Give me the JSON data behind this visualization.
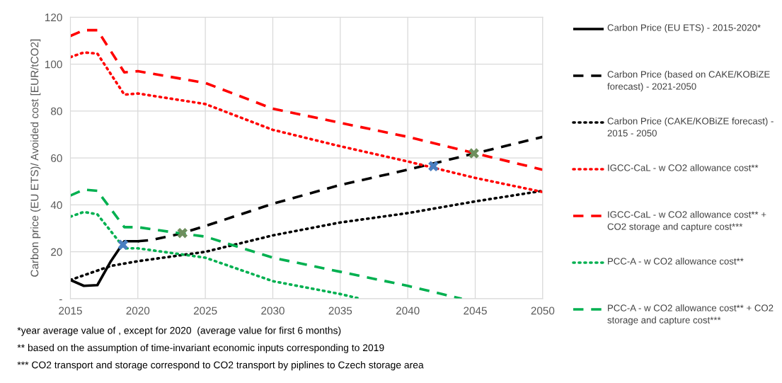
{
  "chart_data": {
    "type": "line",
    "ylabel": "Carbon price (EU ETS)/ Avoided cost [EUR/tCO2]",
    "xlim": [
      2015,
      2050
    ],
    "xticks": [
      2015,
      2020,
      2025,
      2030,
      2035,
      2040,
      2045,
      2050
    ],
    "ylim": [
      0,
      120
    ],
    "yticks": [
      {
        "value": 0,
        "label": "-"
      },
      20,
      40,
      60,
      80,
      100,
      120
    ],
    "grid": true,
    "legend": "right",
    "series": [
      {
        "name": "Carbon Price (EU ETS) - 2015-2020*",
        "color": "#000000",
        "line_style": "solid",
        "x": [
          2015,
          2016,
          2017,
          2018,
          2019,
          2020
        ],
        "values": [
          8,
          5.5,
          5.8,
          16,
          24.5,
          24.5
        ]
      },
      {
        "name": "Carbon Price (based on CAKE/KOBiZE forecast) - 2021-2050",
        "color": "#000000",
        "line_style": "dashed",
        "x": [
          2020,
          2021,
          2023,
          2025,
          2030,
          2035,
          2040,
          2045,
          2050
        ],
        "values": [
          24.5,
          25,
          27.5,
          31,
          40.5,
          48.5,
          55,
          62,
          69
        ]
      },
      {
        "name": "Carbon Price (CAKE/KOBiZE forecast) - 2015 - 2050",
        "color": "#000000",
        "line_style": "dotted",
        "x": [
          2015,
          2017,
          2018,
          2020,
          2025,
          2030,
          2035,
          2040,
          2045,
          2050
        ],
        "values": [
          8,
          12,
          14,
          16,
          20,
          27,
          32.5,
          36.5,
          41.5,
          46
        ]
      },
      {
        "name": "IGCC-CaL - w CO2 allowance cost**",
        "color": "#ff0000",
        "line_style": "dotted",
        "x": [
          2015,
          2016,
          2017,
          2019,
          2020,
          2025,
          2030,
          2035,
          2040,
          2045,
          2050
        ],
        "values": [
          103,
          105,
          104.5,
          87,
          87.5,
          83,
          72,
          65,
          58.5,
          51.5,
          45.5
        ]
      },
      {
        "name": "IGCC-CaL - w CO2 allowance cost** + CO2 storage and capture cost***",
        "color": "#ff0000",
        "line_style": "dashed",
        "x": [
          2015,
          2016,
          2017,
          2019,
          2020,
          2025,
          2030,
          2035,
          2040,
          2045,
          2050
        ],
        "values": [
          112,
          114.5,
          114.5,
          96.5,
          97,
          92,
          81,
          75,
          69,
          62,
          55
        ]
      },
      {
        "name": "PCC-A - w CO2 allowance cost**",
        "color": "#00b050",
        "line_style": "dotted",
        "x": [
          2015,
          2016,
          2017,
          2019,
          2020,
          2025,
          2030,
          2035,
          2036.5
        ],
        "values": [
          35,
          37,
          36,
          21.5,
          21.5,
          17.5,
          7.5,
          2,
          0
        ]
      },
      {
        "name": "PCC-A - w CO2 allowance cost** + CO2 storage and capture cost***",
        "color": "#00b050",
        "line_style": "dashed",
        "x": [
          2015,
          2016,
          2017,
          2019,
          2020,
          2023,
          2025,
          2030,
          2035,
          2040,
          2044
        ],
        "values": [
          44,
          46.5,
          46,
          30.5,
          30.5,
          28,
          26.5,
          17.5,
          11.5,
          5.5,
          0
        ]
      },
      {
        "type": "scatter",
        "marker": "cross",
        "color": "#4a7fc1",
        "x": [
          2018.9,
          2041.9
        ],
        "values": [
          23,
          56.5
        ]
      },
      {
        "type": "scatter",
        "marker": "cross",
        "color": "#6e8f5e",
        "x": [
          2023.3,
          2044.9
        ],
        "values": [
          28,
          62
        ]
      }
    ],
    "annotations": [
      "*year average value of , except for 2020  (average value for first 6 months)",
      "** based on the assumption of time-invariant economic inputs corresponding to 2019",
      "*** CO2 transport and storage correspond to CO2 transport by piplines to Czech storage area"
    ]
  }
}
